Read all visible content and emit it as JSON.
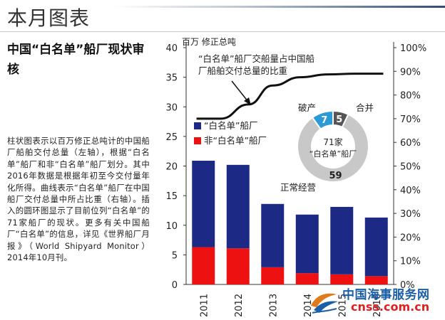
{
  "header": {
    "title": "本月图表"
  },
  "article": {
    "subtitle": "中国“白名单”船厂现状审核",
    "body": "柱状图表示以百万修正总吨计的中国船厂船舶交付总量（左轴），根据“白名单”船厂和非“白名单”船厂划分。其中2016年数据是根据年初至今交付量年化所得。曲线表示“白名单”船厂在中国船厂交付总量中所占比重（右轴）。插入的圆环图显示了目前位列“白名单”的71家船厂的现状。更多有关中国船厂“白名单”的信息，详见《世界船厂月报》（World Shipyard Monitor）2014年10月刊。"
  },
  "chart_data": {
    "type": "bar",
    "left_axis_unit": "百万 修正总吨",
    "categories": [
      "2011",
      "2012",
      "2013",
      "2014",
      "2015",
      "2016"
    ],
    "ylim": [
      0,
      40
    ],
    "yticks": [
      0,
      5,
      10,
      15,
      20,
      25,
      30,
      35,
      40
    ],
    "y2lim": [
      0,
      100
    ],
    "y2ticks": [
      "0%",
      "10%",
      "20%",
      "30%",
      "40%",
      "50%",
      "60%",
      "70%",
      "80%",
      "90%",
      "100%"
    ],
    "series": [
      {
        "name": "“白名单”船厂",
        "color": "#1c2a86",
        "values": [
          14.6,
          14.1,
          10.7,
          9.9,
          11.4,
          9.9
        ]
      },
      {
        "name": "非“白名单”船厂",
        "color": "#ee1111",
        "values": [
          6.3,
          6.1,
          2.9,
          1.9,
          1.7,
          1.4
        ]
      }
    ],
    "line": {
      "label": "“白名单”船厂交船量占中国船厂船舶交付总量的比重",
      "x": [
        0.3,
        1.0,
        1.8,
        2.5,
        3.3,
        4.1,
        4.9,
        5.7
      ],
      "values": [
        70,
        70,
        76,
        84,
        87.5,
        88.7,
        89,
        89
      ]
    },
    "donut": {
      "center_count": "71家",
      "center_label": "“白名单”船厂",
      "segments": [
        {
          "name": "破产",
          "value": 7,
          "color": "#2a9bd6"
        },
        {
          "name": "合并",
          "value": 5,
          "color": "#555555"
        },
        {
          "name": "正常经营",
          "value": 59,
          "color": "#c8c8c8"
        }
      ]
    }
  },
  "watermark": {
    "cn_text": "中国海事服务网",
    "url_text": "cnss.com.cn"
  }
}
